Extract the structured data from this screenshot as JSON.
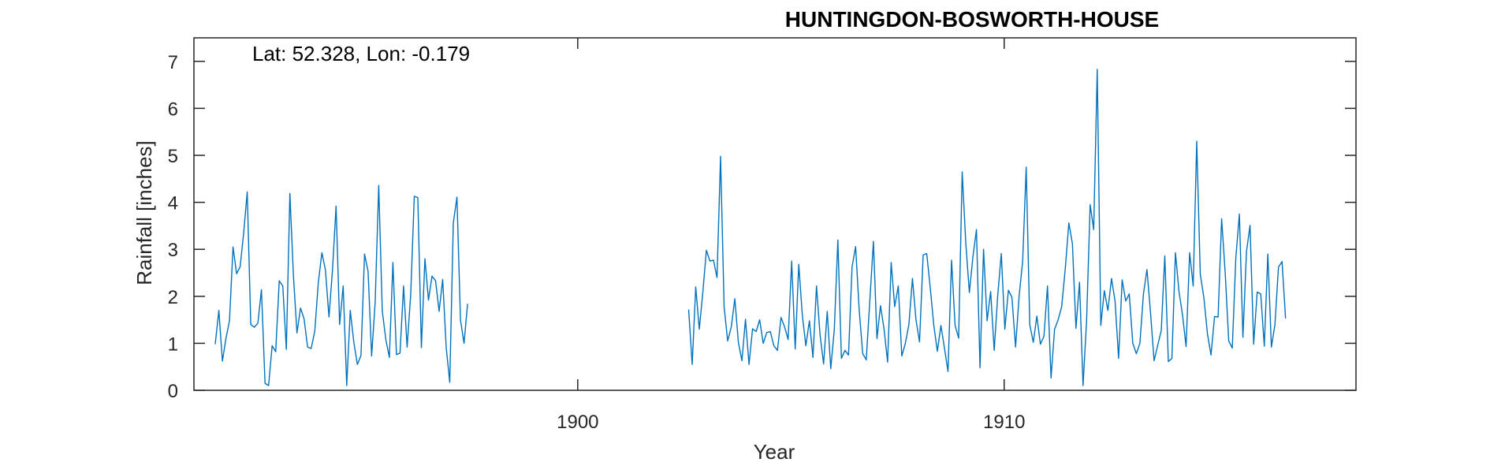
{
  "chart_data": {
    "type": "line",
    "title": "HUNTINGDON-BOSWORTH-HOUSE",
    "annotation": "Lat: 52.328, Lon: -0.179",
    "xlabel": "Year",
    "ylabel": "Rainfall [inches]",
    "xlim": [
      1891,
      1918.25
    ],
    "ylim": [
      0,
      7.5
    ],
    "xticks": [
      1900,
      1910
    ],
    "yticks": [
      0,
      1,
      2,
      3,
      4,
      5,
      6,
      7
    ],
    "line_color": "#0072BD",
    "grid": false,
    "segments": [
      {
        "start": 1891.5,
        "step": 0.08333,
        "values": [
          0.98,
          1.7,
          0.62,
          1.1,
          1.48,
          3.05,
          2.48,
          2.63,
          3.35,
          4.22,
          1.4,
          1.34,
          1.43,
          2.14,
          0.15,
          0.1,
          0.95,
          0.82,
          2.33,
          2.22,
          0.87,
          4.19,
          2.44,
          1.22,
          1.75,
          1.52,
          0.92,
          0.89,
          1.26,
          2.3,
          2.93,
          2.56,
          1.56,
          2.57,
          3.92,
          1.4,
          2.22,
          0.1,
          1.7,
          1.02,
          0.55,
          0.74,
          2.9,
          2.53,
          0.73,
          1.88,
          4.36,
          1.69,
          1.08,
          0.7,
          2.72,
          0.76,
          0.79,
          2.22,
          0.92,
          2.05,
          4.13,
          4.1,
          0.91,
          2.8,
          1.92,
          2.43,
          2.33,
          1.68,
          2.36,
          0.91,
          0.17,
          3.56,
          4.11,
          1.5,
          1.0,
          1.84
        ]
      },
      {
        "start": 1902.6,
        "step": 0.08333,
        "values": [
          1.72,
          0.55,
          2.2,
          1.3,
          2.08,
          2.98,
          2.75,
          2.77,
          2.4,
          4.98,
          1.78,
          1.05,
          1.35,
          1.95,
          1.02,
          0.63,
          1.51,
          0.55,
          1.31,
          1.25,
          1.5,
          1.0,
          1.23,
          1.25,
          0.95,
          0.85,
          1.55,
          1.35,
          1.08,
          2.75,
          0.88,
          2.68,
          1.6,
          0.95,
          1.48,
          0.7,
          2.22,
          1.18,
          0.56,
          1.68,
          0.46,
          1.3,
          3.2,
          0.68,
          0.85,
          0.75,
          2.62,
          3.06,
          1.72,
          0.78,
          0.65,
          1.9,
          3.17,
          1.1,
          1.8,
          1.3,
          0.6,
          2.72,
          1.78,
          2.22,
          0.73,
          1.0,
          1.4,
          2.38,
          1.5,
          1.03,
          2.88,
          2.91,
          2.18,
          1.38,
          0.83,
          1.38,
          0.9,
          0.4,
          2.77,
          1.38,
          1.11,
          4.65,
          3.15,
          2.08,
          2.84,
          3.42,
          0.48,
          3.0,
          1.48,
          2.1,
          0.85,
          2.02,
          2.91,
          1.3,
          2.13,
          1.98,
          0.92,
          2.0,
          2.75,
          4.75,
          1.4,
          1.02,
          1.58,
          0.98,
          1.15,
          2.22,
          0.26,
          1.3,
          1.5,
          1.78,
          2.6,
          3.56,
          3.12,
          1.32,
          2.3,
          0.1,
          1.48,
          3.95,
          3.42,
          6.83,
          1.38,
          2.12,
          1.7,
          2.38,
          1.9,
          0.68,
          2.35,
          1.9,
          2.05,
          1.0,
          0.78,
          1.0,
          2.05,
          2.57,
          1.65,
          0.63,
          0.95,
          1.27,
          2.86,
          0.61,
          0.68,
          2.93,
          2.1,
          1.6,
          0.93,
          2.93,
          2.22,
          5.3,
          2.47,
          1.98,
          1.2,
          0.75,
          1.57,
          1.56,
          3.65,
          2.5,
          1.05,
          0.9,
          2.82,
          3.75,
          1.13,
          2.95,
          3.51,
          0.98,
          2.09,
          2.05,
          0.94,
          2.9,
          0.92,
          1.4,
          2.62,
          2.74,
          1.53
        ]
      }
    ]
  }
}
